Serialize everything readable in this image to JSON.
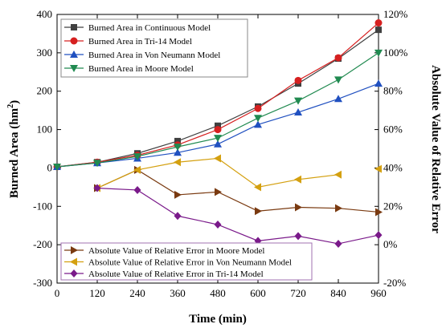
{
  "chart_data": {
    "type": "line",
    "xlabel": "Time (min)",
    "ylabel": "Burned Area (hm",
    "ylabel_sup": "2",
    "ylabel_tail": ")",
    "y2label": "Absolute Value of Relative Error",
    "x": [
      0,
      120,
      240,
      360,
      480,
      600,
      720,
      840,
      960
    ],
    "xlim": [
      0,
      960
    ],
    "ylim": [
      -300,
      400
    ],
    "y2lim": [
      -20,
      120
    ],
    "y2_unit": "%",
    "grid": false,
    "legend_top_placement": "top-left",
    "legend_bottom_placement": "bottom-left",
    "series_left": [
      {
        "name": "Burned Area in Continuous Model",
        "color": "#404040",
        "marker": "square",
        "x": [
          0,
          120,
          240,
          360,
          480,
          600,
          720,
          840,
          960
        ],
        "values": [
          3,
          15,
          38,
          70,
          110,
          160,
          220,
          285,
          360
        ]
      },
      {
        "name": "Burned Area in Tri-14 Model",
        "color": "#d62020",
        "marker": "circle",
        "x": [
          0,
          120,
          240,
          360,
          480,
          600,
          720,
          840,
          960
        ],
        "values": [
          3,
          15,
          33,
          60,
          100,
          155,
          228,
          287,
          378
        ]
      },
      {
        "name": "Burned Area in Von Neumann Model",
        "color": "#2050c0",
        "marker": "triangle-up",
        "x": [
          0,
          120,
          240,
          360,
          480,
          600,
          720,
          840,
          960
        ],
        "values": [
          3,
          13,
          25,
          40,
          62,
          113,
          145,
          180,
          220
        ]
      },
      {
        "name": "Burned Area in Moore Model",
        "color": "#208a50",
        "marker": "triangle-down",
        "x": [
          0,
          120,
          240,
          360,
          480,
          600,
          720,
          840,
          960
        ],
        "values": [
          3,
          13,
          30,
          55,
          78,
          130,
          175,
          230,
          300
        ]
      }
    ],
    "series_right": [
      {
        "name": "Absolute Value of Relative Error in Moore Model",
        "color": "#7a3a10",
        "marker": "triangle-right",
        "x": [
          120,
          240,
          360,
          480,
          600,
          720,
          840,
          960
        ],
        "values": [
          29.5,
          39,
          26,
          27.5,
          17.5,
          19.5,
          19,
          17
        ]
      },
      {
        "name": "Absolute Value of Relative Error in Von Neumann Model",
        "color": "#d4a010",
        "marker": "triangle-left",
        "x": [
          120,
          240,
          360,
          480,
          600,
          720,
          840
        ],
        "values": [
          29.5,
          39,
          43,
          45,
          30,
          34,
          36.5
        ]
      },
      {
        "name": "Absolute Value of Relative Error in Tri-14 Model",
        "color": "#7a1a8a",
        "marker": "diamond",
        "x": [
          120,
          240,
          360,
          480,
          600,
          720,
          840,
          960
        ],
        "values": [
          29.5,
          28.5,
          15,
          10.5,
          2,
          4.5,
          0.5,
          5
        ]
      }
    ],
    "extra_right_points": [
      {
        "color": "#d4a010",
        "marker": "triangle-left",
        "x": 960,
        "value": 39.5
      }
    ],
    "xticks": [
      "0",
      "120",
      "240",
      "360",
      "480",
      "600",
      "720",
      "840",
      "960"
    ],
    "yticks": [
      "-300",
      "-200",
      "-100",
      "0",
      "100",
      "200",
      "300",
      "400"
    ],
    "y2ticks": [
      "-20%",
      "0%",
      "20%",
      "40%",
      "60%",
      "80%",
      "100%",
      "120%"
    ]
  }
}
